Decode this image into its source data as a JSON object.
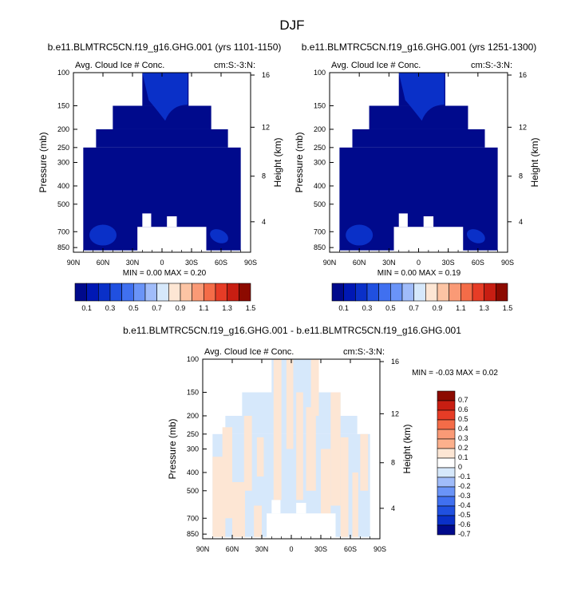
{
  "title": "DJF",
  "colors": {
    "dark_navy": "#000a8c",
    "mid_blue": "#0a30c8",
    "light_blue": "#d6e8fb",
    "light_peach": "#fde6d4",
    "background": "#ffffff"
  },
  "chart_data": [
    {
      "type": "heatmap",
      "title": "b.e11.BLMTRC5CN.f19_g16.GHG.001 (yrs 1101-1150)",
      "left_string": "Avg. Cloud Ice # Conc.",
      "right_string": "cm:S:-3:N:",
      "xlabel": "",
      "ylabel": "Pressure (mb)",
      "ylabel_right": "Height (km)",
      "x_ticks": [
        "90N",
        "60N",
        "30N",
        "0",
        "30S",
        "60S",
        "90S"
      ],
      "x_range": [
        90,
        -90
      ],
      "y_ticks": [
        "100",
        "150",
        "200",
        "250",
        "300",
        "400",
        "500",
        "700",
        "850"
      ],
      "y_range_mb": [
        100,
        900
      ],
      "y_scale": "log",
      "height_ticks": [
        "4",
        "8",
        "12",
        "16"
      ],
      "stats": "MIN =   0.00  MAX =   0.20",
      "min": 0.0,
      "max": 0.2,
      "colorbar": {
        "labels": [
          "0.1",
          "0.3",
          "0.5",
          "0.7",
          "0.9",
          "1.1",
          "1.3",
          "1.5"
        ],
        "colors": [
          "#000a8c",
          "#0018b4",
          "#0a30c8",
          "#2050e0",
          "#4070f0",
          "#6a94f8",
          "#a0bcfa",
          "#d6e8fb",
          "#fde6d4",
          "#fcc4a4",
          "#fa9a76",
          "#f46c48",
          "#e63c26",
          "#c81e12",
          "#8c0a00"
        ]
      }
    },
    {
      "type": "heatmap",
      "title": "b.e11.BLMTRC5CN.f19_g16.GHG.001 (yrs 1251-1300)",
      "left_string": "Avg. Cloud Ice # Conc.",
      "right_string": "cm:S:-3:N:",
      "xlabel": "",
      "ylabel": "Pressure (mb)",
      "ylabel_right": "Height (km)",
      "x_ticks": [
        "90N",
        "60N",
        "30N",
        "0",
        "30S",
        "60S",
        "90S"
      ],
      "x_range": [
        90,
        -90
      ],
      "y_ticks": [
        "100",
        "150",
        "200",
        "250",
        "300",
        "400",
        "500",
        "700",
        "850"
      ],
      "y_range_mb": [
        100,
        900
      ],
      "y_scale": "log",
      "height_ticks": [
        "4",
        "8",
        "12",
        "16"
      ],
      "stats": "MIN =   0.00  MAX =   0.19",
      "min": 0.0,
      "max": 0.19,
      "colorbar": {
        "labels": [
          "0.1",
          "0.3",
          "0.5",
          "0.7",
          "0.9",
          "1.1",
          "1.3",
          "1.5"
        ],
        "colors": [
          "#000a8c",
          "#0018b4",
          "#0a30c8",
          "#2050e0",
          "#4070f0",
          "#6a94f8",
          "#a0bcfa",
          "#d6e8fb",
          "#fde6d4",
          "#fcc4a4",
          "#fa9a76",
          "#f46c48",
          "#e63c26",
          "#c81e12",
          "#8c0a00"
        ]
      }
    },
    {
      "type": "heatmap",
      "title": "b.e11.BLMTRC5CN.f19_g16.GHG.001 - b.e11.BLMTRC5CN.f19_g16.GHG.001",
      "left_string": "Avg. Cloud Ice # Conc.",
      "right_string": "cm:S:-3:N:",
      "xlabel": "",
      "ylabel": "Pressure (mb)",
      "ylabel_right": "Height (km)",
      "x_ticks": [
        "90N",
        "60N",
        "30N",
        "0",
        "30S",
        "60S",
        "90S"
      ],
      "x_range": [
        90,
        -90
      ],
      "y_ticks": [
        "100",
        "150",
        "200",
        "250",
        "300",
        "400",
        "500",
        "700",
        "850"
      ],
      "y_range_mb": [
        100,
        900
      ],
      "y_scale": "log",
      "height_ticks": [
        "4",
        "8",
        "12",
        "16"
      ],
      "stats": "MIN =  -0.03  MAX =   0.02",
      "min": -0.03,
      "max": 0.02,
      "colorbar": {
        "labels": [
          "0.7",
          "0.6",
          "0.5",
          "0.4",
          "0.3",
          "0.2",
          "0.1",
          "0",
          "-0.1",
          "-0.2",
          "-0.3",
          "-0.4",
          "-0.5",
          "-0.6",
          "-0.7"
        ],
        "colors": [
          "#8c0a00",
          "#c81e12",
          "#e63c26",
          "#f46c48",
          "#fa9a76",
          "#fcb08c",
          "#fde6d4",
          "#ffffff",
          "#d6e8fb",
          "#a0bcfa",
          "#6a94f8",
          "#4070f0",
          "#2050e0",
          "#0a30c8",
          "#000a8c"
        ]
      }
    }
  ]
}
